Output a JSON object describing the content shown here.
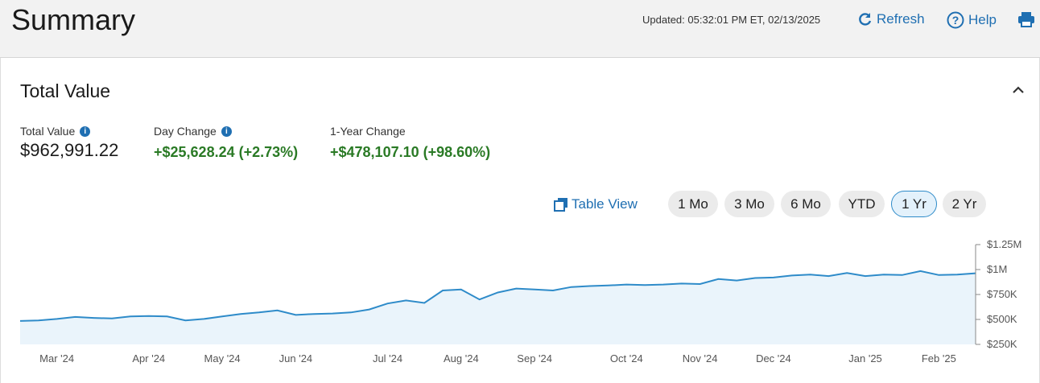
{
  "header": {
    "title": "Summary",
    "updated": "Updated: 05:32:01 PM ET, 02/13/2025",
    "refresh": "Refresh",
    "help": "Help"
  },
  "section": {
    "title": "Total Value"
  },
  "metrics": [
    {
      "label": "Total Value",
      "value": "$962,991.22"
    },
    {
      "label": "Day Change",
      "value": "+$25,628.24 (+2.73%)"
    },
    {
      "label": "1-Year Change",
      "value": "+$478,107.10 (+98.60%)"
    }
  ],
  "table_view": "Table View",
  "ranges": [
    "1 Mo",
    "3 Mo",
    "6 Mo",
    "YTD",
    "1 Yr",
    "2 Yr"
  ],
  "selected_range": "1 Yr",
  "chart_data": {
    "type": "area",
    "color": "#2e8bc9",
    "fill": "#eaf4fb",
    "categories": [
      null,
      null,
      "Mar '24",
      null,
      null,
      null,
      null,
      "Apr '24",
      null,
      null,
      null,
      "May '24",
      null,
      null,
      null,
      "Jun '24",
      null,
      null,
      null,
      null,
      "Jul '24",
      null,
      null,
      null,
      "Aug '24",
      null,
      null,
      null,
      "Sep '24",
      null,
      null,
      null,
      null,
      "Oct '24",
      null,
      null,
      null,
      "Nov '24",
      null,
      null,
      null,
      "Dec '24",
      null,
      null,
      null,
      null,
      "Jan '25",
      null,
      null,
      null,
      "Feb '25",
      null,
      null
    ],
    "values": [
      485000,
      490000,
      505000,
      525000,
      515000,
      510000,
      530000,
      535000,
      530000,
      490000,
      505000,
      530000,
      555000,
      570000,
      590000,
      545000,
      555000,
      560000,
      570000,
      600000,
      660000,
      690000,
      665000,
      790000,
      800000,
      700000,
      770000,
      810000,
      800000,
      790000,
      825000,
      835000,
      840000,
      850000,
      845000,
      850000,
      860000,
      855000,
      905000,
      890000,
      915000,
      920000,
      940000,
      950000,
      935000,
      965000,
      935000,
      950000,
      945000,
      985000,
      945000,
      950000,
      962991.22
    ],
    "ylim": [
      250000,
      1250000
    ],
    "yticks": [
      {
        "value": 250000,
        "label": "$250K"
      },
      {
        "value": 500000,
        "label": "$500K"
      },
      {
        "value": 750000,
        "label": "$750K"
      },
      {
        "value": 1000000,
        "label": "$1M"
      },
      {
        "value": 1250000,
        "label": "$1.25M"
      }
    ]
  }
}
